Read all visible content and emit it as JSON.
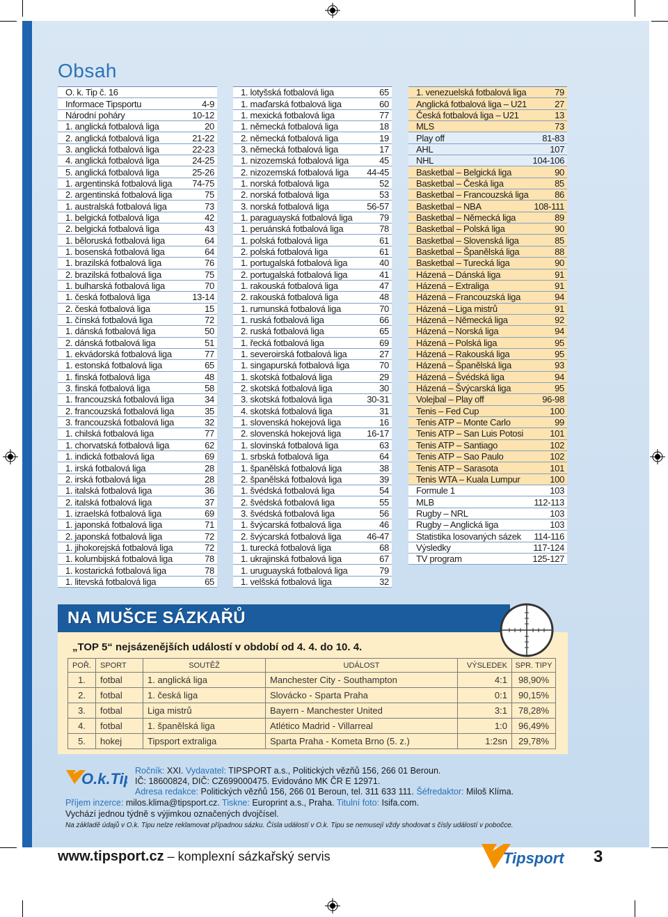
{
  "title": "Obsah",
  "col1": [
    [
      "O. k. Tip č. 16",
      ""
    ],
    [
      "Informace Tipsportu",
      "4-9"
    ],
    [
      "Národní poháry",
      "10-12"
    ],
    [
      "1. anglická fotbalová liga",
      "20"
    ],
    [
      "2. anglická fotbalová liga",
      "21-22"
    ],
    [
      "3. anglická fotbalová liga",
      "22-23"
    ],
    [
      "4. anglická fotbalová liga",
      "24-25"
    ],
    [
      "5. anglická fotbalová liga",
      "25-26"
    ],
    [
      "1. argentinská fotbalová liga",
      "74-75"
    ],
    [
      "2. argentinská fotbalová liga",
      "75"
    ],
    [
      "1. australská fotbalová liga",
      "73"
    ],
    [
      "1. belgická fotbalová liga",
      "42"
    ],
    [
      "2. belgická fotbalová liga",
      "43"
    ],
    [
      "1. běloruská fotbalová liga",
      "64"
    ],
    [
      "1. bosenská fotbalová liga",
      "64"
    ],
    [
      "1. brazilská fotbalová liga",
      "76"
    ],
    [
      "2. brazilská fotbalová liga",
      "75"
    ],
    [
      "1. bulharská fotbalová liga",
      "70"
    ],
    [
      "1. česká fotbalová liga",
      "13-14"
    ],
    [
      "2. česká fotbalová liga",
      "15"
    ],
    [
      "1. čínská fotbalová liga",
      "72"
    ],
    [
      "1. dánská fotbalová liga",
      "50"
    ],
    [
      "2. dánská fotbalová liga",
      "51"
    ],
    [
      "1. ekvádorská fotbalová liga",
      "77"
    ],
    [
      "1. estonská fotbalová liga",
      "65"
    ],
    [
      "1. finská fotbalová liga",
      "48"
    ],
    [
      "3. finská fotbalová liga",
      "58"
    ],
    [
      "1. francouzská fotbalová liga",
      "34"
    ],
    [
      "2. francouzská fotbalová liga",
      "35"
    ],
    [
      "3. francouzská fotbalová liga",
      "32"
    ],
    [
      "1. chilská fotbalová liga",
      "77"
    ],
    [
      "1. chorvatská fotbalová liga",
      "62"
    ],
    [
      "1. indická fotbalová liga",
      "69"
    ],
    [
      "1. irská fotbalová liga",
      "28"
    ],
    [
      "2. irská fotbalová liga",
      "28"
    ],
    [
      "1. italská fotbalová liga",
      "36"
    ],
    [
      "2. italská fotbalová liga",
      "37"
    ],
    [
      "1. izraelská fotbalová liga",
      "69"
    ],
    [
      "1. japonská fotbalová liga",
      "71"
    ],
    [
      "2. japonská fotbalová liga",
      "72"
    ],
    [
      "1. jihokorejská fotbalová liga",
      "72"
    ],
    [
      "1. kolumbijská fotbalová liga",
      "78"
    ],
    [
      "1. kostarická fotbalová liga",
      "78"
    ],
    [
      "1. litevská fotbalová liga",
      "65"
    ]
  ],
  "col2": [
    [
      "1. lotyšská fotbalová liga",
      "65"
    ],
    [
      "1. maďarská fotbalová liga",
      "60"
    ],
    [
      "1. mexická fotbalová liga",
      "77"
    ],
    [
      "1. německá fotbalová liga",
      "18"
    ],
    [
      "2. německá fotbalová liga",
      "19"
    ],
    [
      "3. německá fotbalová liga",
      "17"
    ],
    [
      "1. nizozemská fotbalová liga",
      "45"
    ],
    [
      "2. nizozemská fotbalová liga",
      "44-45"
    ],
    [
      "1. norská fotbalová liga",
      "52"
    ],
    [
      "2. norská fotbalová liga",
      "53"
    ],
    [
      "3. norská fotbalová liga",
      "56-57"
    ],
    [
      "1. paraguayská fotbalová liga",
      "79"
    ],
    [
      "1. peruánská fotbalová liga",
      "78"
    ],
    [
      "1. polská fotbalová liga",
      "61"
    ],
    [
      "2. polská fotbalová liga",
      "61"
    ],
    [
      "1. portugalská fotbalová liga",
      "40"
    ],
    [
      "2. portugalská fotbalová liga",
      "41"
    ],
    [
      "1. rakouská fotbalová liga",
      "47"
    ],
    [
      "2. rakouská fotbalová liga",
      "48"
    ],
    [
      "1. rumunská fotbalová liga",
      "70"
    ],
    [
      "1. ruská fotbalová liga",
      "66"
    ],
    [
      "2. ruská fotbalová liga",
      "65"
    ],
    [
      "1. řecká fotbalová liga",
      "69"
    ],
    [
      "1. severoirská fotbalová liga",
      "27"
    ],
    [
      "1. singapurská fotbalová liga",
      "70"
    ],
    [
      "1. skotská fotbalová liga",
      "29"
    ],
    [
      "2. skotská fotbalová liga",
      "30"
    ],
    [
      "3. skotská fotbalová liga",
      "30-31"
    ],
    [
      "4. skotská fotbalová liga",
      "31"
    ],
    [
      "1. slovenská hokejová liga",
      "16"
    ],
    [
      "2. slovenská hokejová liga",
      "16-17"
    ],
    [
      "1. slovinská fotbalová liga",
      "63"
    ],
    [
      "1. srbská fotbalová liga",
      "64"
    ],
    [
      "1. španělská fotbalová liga",
      "38"
    ],
    [
      "2. španělská fotbalová liga",
      "39"
    ],
    [
      "1. švédská fotbalová liga",
      "54"
    ],
    [
      "2. švédská fotbalová liga",
      "55"
    ],
    [
      "3. švédská fotbalová liga",
      "56"
    ],
    [
      "1. švýcarská fotbalová liga",
      "46"
    ],
    [
      "2. švýcarská fotbalová liga",
      "46-47"
    ],
    [
      "1. turecká fotbalová liga",
      "68"
    ],
    [
      "1. ukrajinská fotbalová liga",
      "67"
    ],
    [
      "1. uruguayská fotbalová liga",
      "79"
    ],
    [
      "1. velšská fotbalová liga",
      "32"
    ]
  ],
  "col3": [
    [
      "1. venezuelská fotbalová liga",
      "79",
      "cream"
    ],
    [
      "Anglická fotbalová liga – U21",
      "27",
      "cream"
    ],
    [
      "Česká fotbalová liga – U21",
      "13",
      "cream"
    ],
    [
      "MLS",
      "73",
      "cream"
    ],
    [
      "Play off",
      "81-83",
      "blue"
    ],
    [
      "AHL",
      "107",
      "blue"
    ],
    [
      "NHL",
      "104-106",
      "blue"
    ],
    [
      "Basketbal – Belgická liga",
      "90",
      "cream"
    ],
    [
      "Basketbal – Česká liga",
      "85",
      "cream"
    ],
    [
      "Basketbal – Francouzská liga",
      "86",
      "cream"
    ],
    [
      "Basketbal – NBA",
      "108-111",
      "cream"
    ],
    [
      "Basketbal – Německá liga",
      "89",
      "cream"
    ],
    [
      "Basketbal – Polská liga",
      "90",
      "cream"
    ],
    [
      "Basketbal – Slovenská liga",
      "85",
      "cream"
    ],
    [
      "Basketbal – Španělská liga",
      "88",
      "cream"
    ],
    [
      "Basketbal – Turecká liga",
      "90",
      "cream"
    ],
    [
      "Házená – Dánská liga",
      "91",
      "cream"
    ],
    [
      "Házená – Extraliga",
      "91",
      "cream"
    ],
    [
      "Házená – Francouzská liga",
      "94",
      "cream"
    ],
    [
      "Házená – Liga mistrů",
      "91",
      "cream"
    ],
    [
      "Házená – Německá liga",
      "92",
      "cream"
    ],
    [
      "Házená – Norská liga",
      "94",
      "cream"
    ],
    [
      "Házená – Polská liga",
      "95",
      "cream"
    ],
    [
      "Házená – Rakouská liga",
      "95",
      "cream"
    ],
    [
      "Házená – Španělská liga",
      "93",
      "cream"
    ],
    [
      "Házená – Švédská liga",
      "94",
      "cream"
    ],
    [
      "Házená – Švýcarská liga",
      "95",
      "cream"
    ],
    [
      "Volejbal – Play off",
      "96-98",
      "cream"
    ],
    [
      "Tenis – Fed Cup",
      "100",
      "cream"
    ],
    [
      "Tenis ATP – Monte Carlo",
      "99",
      "cream"
    ],
    [
      "Tenis ATP – San Luis Potosi",
      "101",
      "cream"
    ],
    [
      "Tenis ATP – Santiago",
      "102",
      "cream"
    ],
    [
      "Tenis ATP – Sao Paulo",
      "102",
      "cream"
    ],
    [
      "Tenis ATP – Sarasota",
      "101",
      "cream"
    ],
    [
      "Tenis WTA – Kuala Lumpur",
      "100",
      "cream"
    ],
    [
      "Formule 1",
      "103",
      "white"
    ],
    [
      "MLB",
      "112-113",
      "white"
    ],
    [
      "Rugby – NRL",
      "103",
      "white"
    ],
    [
      "Rugby – Anglická liga",
      "103",
      "white"
    ],
    [
      "Statistika losovaných sázek",
      "114-116",
      "white"
    ],
    [
      "Výsledky",
      "117-124",
      "white"
    ],
    [
      "TV program",
      "125-127",
      "white"
    ]
  ],
  "banner": "NA MUŠCE SÁZKAŘŮ",
  "subtitle": "„TOP 5“ nejsázenějších událostí v období od 4. 4. do 10. 4.",
  "table": {
    "headers": [
      "POŘ.",
      "SPORT",
      "SOUTĚŽ",
      "UDÁLOST",
      "VÝSLEDEK",
      "SPR. TIPY"
    ],
    "rows": [
      [
        "1.",
        "fotbal",
        "1. anglická liga",
        "Manchester City - Southampton",
        "4:1",
        "98,90%"
      ],
      [
        "2.",
        "fotbal",
        "1. česká liga",
        "Slovácko - Sparta Praha",
        "0:1",
        "90,15%"
      ],
      [
        "3.",
        "fotbal",
        "Liga mistrů",
        "Bayern - Manchester United",
        "3:1",
        "78,28%"
      ],
      [
        "4.",
        "fotbal",
        "1. španělská liga",
        "Atlético Madrid - Villarreal",
        "1:0",
        "96,49%"
      ],
      [
        "5.",
        "hokej",
        "Tipsport extraliga",
        "Sparta Praha - Kometa Brno (5. z.)",
        "1:2sn",
        "29,78%"
      ]
    ]
  },
  "logo_text": "O.k.Tip",
  "imprint": {
    "l1a": "Ročník:",
    "l1b": " XXI. ",
    "l1c": "Vydavatel:",
    "l1d": " TIPSPORT a.s., Politických vězňů 156, 266 01 Beroun.",
    "l2": "IČ: 18600824, DIČ: CZ699000475. Evidováno MK ČR E 12971.",
    "l3a": "Adresa redakce:",
    "l3b": " Politických vězňů 156, 266 01  Beroun, tel. 311 633 111. ",
    "l3c": "Šéfredaktor:",
    "l3d": " Miloš Klíma.",
    "l4a": "Příjem inzerce:",
    "l4b": " milos.klima@tipsport.cz. ",
    "l4c": "Tiskne:",
    "l4d": " Europrint a.s., Praha. ",
    "l4e": "Titulní foto:",
    "l4f": " Isifa.com.",
    "l5": "Vychází jednou týdně s výjimkou označených dvojčísel.",
    "l6": "Na základě údajů v O.k. Tipu nelze reklamovat případnou sázku. Čísla událostí v O.k. Tipu se nemusejí vždy shodovat s čísly událostí v pobočce."
  },
  "footer": {
    "url": "www.tipsport.cz",
    "dash": " – ",
    "tagline": "komplexní sázkařský servis",
    "brand": "Tipsport",
    "page": "3"
  },
  "colors": {
    "accent": "#2a72b8",
    "banner": "#1a5c9e",
    "cream": "#fde3b0",
    "stripe": "#1f64b0"
  }
}
